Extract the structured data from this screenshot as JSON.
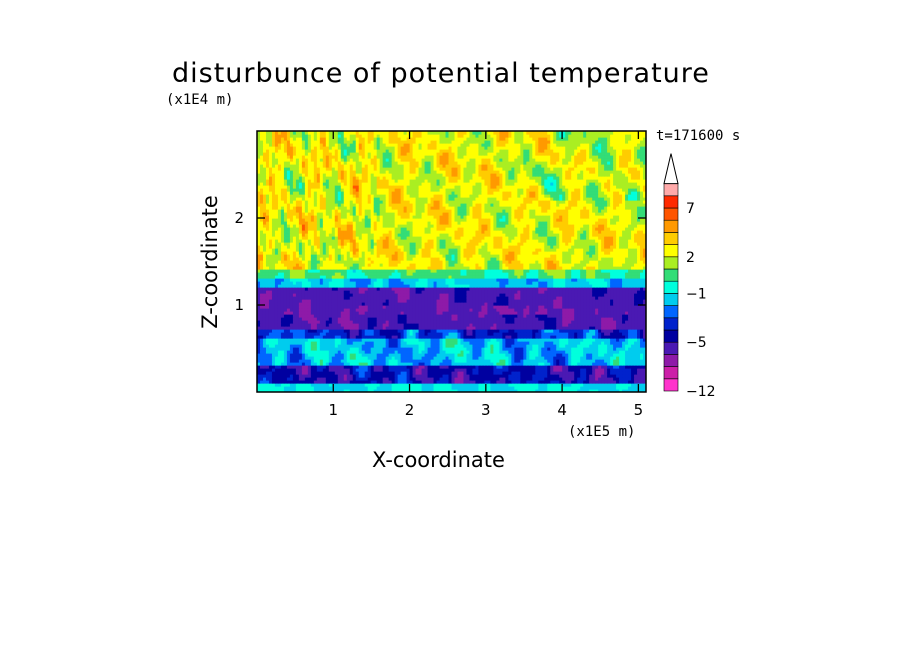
{
  "chart_data": {
    "type": "heatmap",
    "title": "disturbunce of potential temperature",
    "xlabel": "X-coordinate",
    "ylabel": "Z-coordinate",
    "x_multiplier": "(x1E5 m)",
    "y_multiplier": "(x1E4 m)",
    "time_label": "t=171600 s",
    "xlim": [
      0,
      5.1
    ],
    "ylim": [
      0,
      3.0
    ],
    "x_ticks": [
      "1",
      "2",
      "3",
      "4",
      "5"
    ],
    "y_ticks": [
      "1",
      "2"
    ],
    "colorbar": {
      "levels": [
        -12,
        -10,
        -8,
        -6,
        -5,
        -4,
        -3,
        -2,
        -1,
        0,
        1,
        2,
        3,
        4,
        5,
        7,
        9,
        11
      ],
      "tick_labels": [
        "-12",
        "-5",
        "-1",
        "2",
        "7"
      ],
      "colors": [
        "#ff33cc",
        "#cc1fa8",
        "#8e1aa8",
        "#4a19b3",
        "#0000a0",
        "#0022cc",
        "#0066ff",
        "#00ccee",
        "#00ffdd",
        "#33dd77",
        "#aaee22",
        "#ffff00",
        "#ffcc00",
        "#ff9900",
        "#ff5500",
        "#ff2a00",
        "#ffaaaa"
      ],
      "extend_top": true
    },
    "bands": [
      {
        "z_range": [
          0.0,
          0.15
        ],
        "dominant_value": -1,
        "description_value": "near -1 to -2"
      },
      {
        "z_range": [
          0.15,
          0.3
        ],
        "dominant_value": -5
      },
      {
        "z_range": [
          0.3,
          0.6
        ],
        "dominant_value": -1
      },
      {
        "z_range": [
          0.6,
          1.25
        ],
        "dominant_value": -6
      },
      {
        "z_range": [
          1.25,
          1.4
        ],
        "dominant_value": 0
      },
      {
        "z_range": [
          1.4,
          3.0
        ],
        "dominant_value": 3
      }
    ]
  }
}
